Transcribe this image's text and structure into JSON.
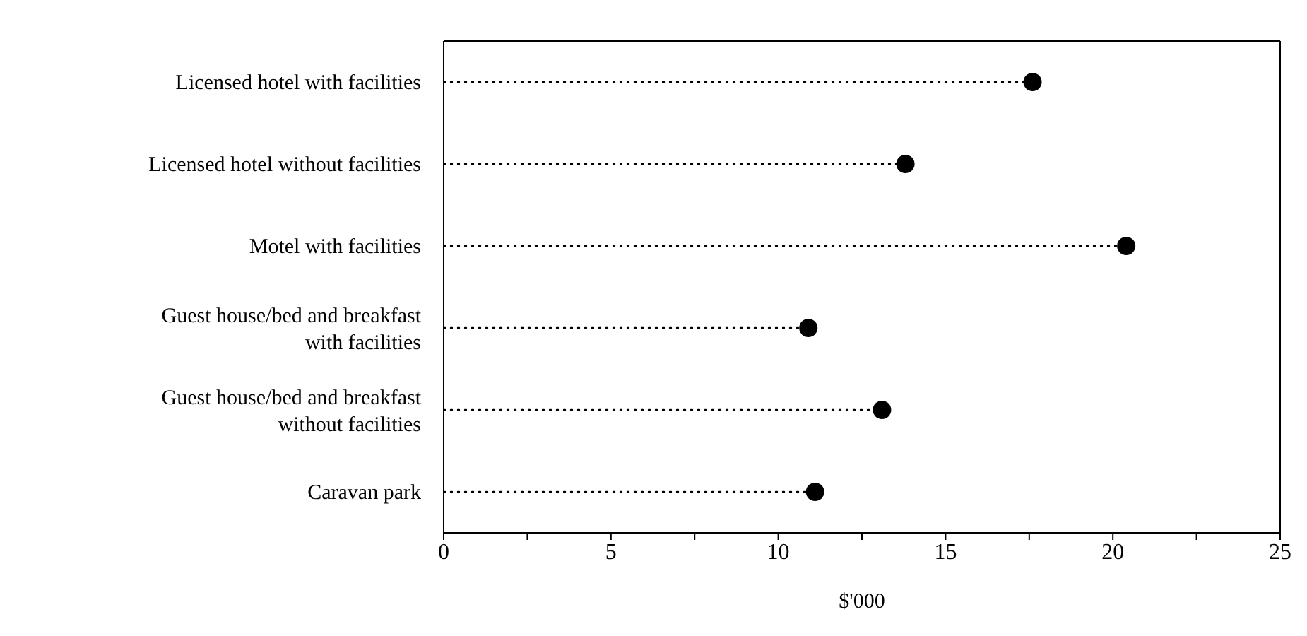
{
  "chart_data": {
    "type": "lollipop",
    "orientation": "horizontal",
    "xlabel": "$'000",
    "categories": [
      "Licensed hotel with facilities",
      "Licensed hotel without facilities",
      "Motel with facilities",
      "Guest house/bed and breakfast\nwith facilities",
      "Guest house/bed and breakfast\nwithout facilities",
      "Caravan park"
    ],
    "values": [
      17.6,
      13.8,
      20.4,
      10.9,
      13.1,
      11.1
    ],
    "color": "#000000",
    "marker": "circle",
    "line_style": "dotted",
    "xlim": [
      0,
      25
    ],
    "xticks": [
      0,
      {
        "value": 2.5,
        "label": null
      },
      5,
      {
        "value": 7.5,
        "label": null
      },
      10,
      {
        "value": 12.5,
        "label": null
      },
      15,
      {
        "value": 17.5,
        "label": null
      },
      20,
      {
        "value": 22.5,
        "label": null
      },
      25
    ],
    "tick_labels": "x"
  }
}
